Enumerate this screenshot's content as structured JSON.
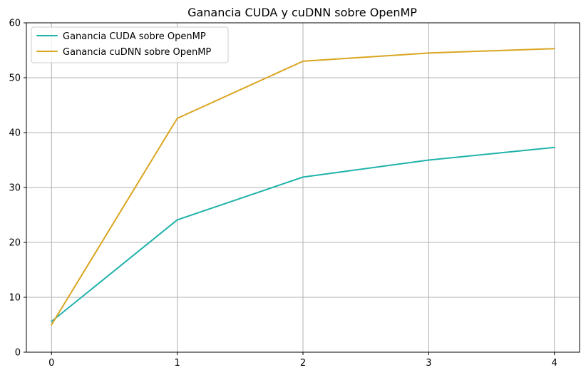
{
  "chart_data": {
    "type": "line",
    "title": "Ganancia CUDA y cuDNN sobre OpenMP",
    "xlabel": "",
    "ylabel": "",
    "x": [
      0,
      1,
      2,
      3,
      4
    ],
    "xlim": [
      -0.2,
      4.2
    ],
    "ylim": [
      0,
      60
    ],
    "xticks": [
      "0",
      "1",
      "2",
      "3",
      "4"
    ],
    "yticks": [
      "0",
      "10",
      "20",
      "30",
      "40",
      "50",
      "60"
    ],
    "grid": true,
    "legend_position": "top-left",
    "series": [
      {
        "name": "Ganancia CUDA sobre OpenMP",
        "color": "#20b2aa",
        "values": [
          5.6,
          24.1,
          31.9,
          35.0,
          37.3
        ]
      },
      {
        "name": "Ganancia cuDNN sobre OpenMP",
        "color": "#daa520",
        "values": [
          5.0,
          42.6,
          53.0,
          54.5,
          55.3
        ]
      }
    ]
  }
}
